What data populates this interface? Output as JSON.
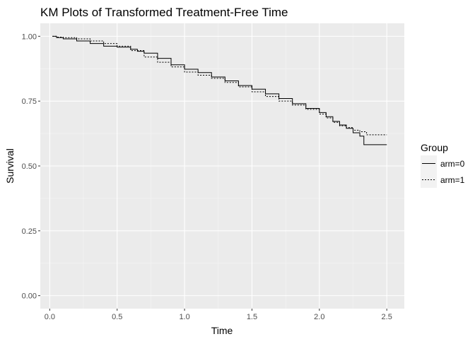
{
  "chart_data": {
    "type": "line",
    "step": true,
    "title": "KM Plots of Transformed Treatment-Free Time",
    "xlabel": "Time",
    "ylabel": "Survival",
    "xlim": [
      -0.07,
      2.63
    ],
    "ylim": [
      -0.05,
      1.05
    ],
    "x_ticks": [
      "0.0",
      "0.5",
      "1.0",
      "1.5",
      "2.0",
      "2.5"
    ],
    "y_ticks": [
      "0.00",
      "0.25",
      "0.50",
      "0.75",
      "1.00"
    ],
    "grid": true,
    "background": "#ebebeb",
    "legend": {
      "title": "Group",
      "position": "right"
    },
    "series": [
      {
        "name": "arm=0",
        "line_style": "solid",
        "color": "#000000",
        "x": [
          0.02,
          0.05,
          0.1,
          0.2,
          0.3,
          0.4,
          0.5,
          0.6,
          0.65,
          0.7,
          0.8,
          0.9,
          1.0,
          1.1,
          1.2,
          1.3,
          1.4,
          1.5,
          1.6,
          1.7,
          1.8,
          1.9,
          2.0,
          2.05,
          2.1,
          2.15,
          2.2,
          2.25,
          2.3,
          2.33,
          2.5
        ],
        "y": [
          1.0,
          0.995,
          0.99,
          0.982,
          0.972,
          0.962,
          0.958,
          0.95,
          0.942,
          0.935,
          0.915,
          0.89,
          0.873,
          0.86,
          0.843,
          0.828,
          0.81,
          0.796,
          0.778,
          0.76,
          0.74,
          0.722,
          0.706,
          0.69,
          0.672,
          0.658,
          0.645,
          0.628,
          0.615,
          0.582,
          0.582
        ]
      },
      {
        "name": "arm=1",
        "line_style": "dotted",
        "color": "#000000",
        "x": [
          0.02,
          0.05,
          0.1,
          0.2,
          0.3,
          0.4,
          0.5,
          0.6,
          0.7,
          0.8,
          0.9,
          1.0,
          1.1,
          1.2,
          1.3,
          1.4,
          1.5,
          1.6,
          1.7,
          1.8,
          1.9,
          2.0,
          2.05,
          2.1,
          2.15,
          2.2,
          2.25,
          2.3,
          2.35,
          2.5
        ],
        "y": [
          1.0,
          0.997,
          0.995,
          0.99,
          0.982,
          0.972,
          0.962,
          0.945,
          0.92,
          0.9,
          0.882,
          0.862,
          0.85,
          0.838,
          0.822,
          0.805,
          0.786,
          0.768,
          0.75,
          0.735,
          0.718,
          0.7,
          0.685,
          0.668,
          0.655,
          0.648,
          0.638,
          0.632,
          0.62,
          0.62
        ]
      }
    ]
  }
}
